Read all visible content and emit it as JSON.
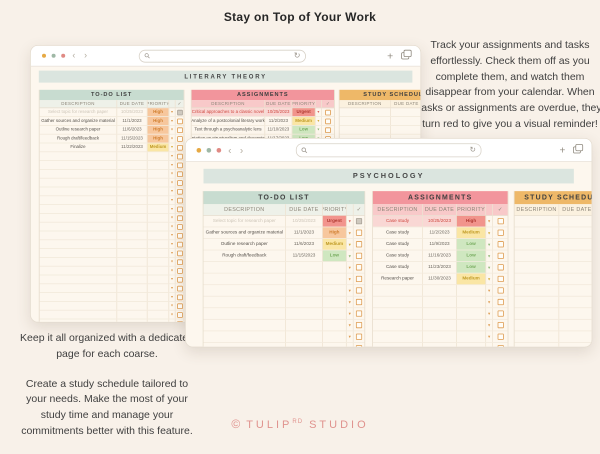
{
  "page": {
    "heading": "Stay on Top of Your Work",
    "right_note": "Track your assignments and tasks effortlessly. Check them off as you complete them, and watch them disappear from your calendar. When tasks or assignments are overdue, they turn red to give you a visual reminder!",
    "left_note_1": "Keep it all organized with a dedicated page for each coarse.",
    "left_note_2": "Create a study schedule tailored to your needs. Make the most of your study time and manage your commitments better with this feature.",
    "footer": {
      "copyright": "©",
      "brand": "TULIP",
      "sup": "RD",
      "suffix": "STUDIO"
    }
  },
  "colors": {
    "background": "#f8f1e9",
    "window_body": "#fdf7ee",
    "banner": "#dbe5df",
    "todo_header": "#c8dcd0",
    "assignments_header": "#f2959c",
    "study_header": "#eeb868",
    "priority_urgent": "#f2948d",
    "priority_high": "#f7c79d",
    "priority_medium": "#fae6a5",
    "priority_low": "#cfe7c0",
    "overdue_row": "#f9d7d4",
    "overdue_text": "#cf4840",
    "checkbox_accent": "#dd9a4e",
    "footer_text": "#e0938e",
    "traffic_lights": [
      "#e6a944",
      "#9fb8a6",
      "#e08a84"
    ]
  },
  "icons": {
    "search": "magnifier",
    "reload": "↻",
    "back": "‹",
    "forward": "›",
    "new_tab": "+",
    "tab_overview": "stacked-squares",
    "dropdown": "▾",
    "check_column": "✓"
  },
  "windows": {
    "back": {
      "page_title": "LITERARY THEORY",
      "search_value": "",
      "tables": {
        "todo": {
          "title": "TO-DO LIST",
          "columns": [
            "DESCRIPTION",
            "DUE DATE",
            "PRIORITY",
            "✓"
          ],
          "rows": [
            {
              "description": "Select topic for research paper",
              "due_date": "10/25/2023",
              "priority": "High",
              "level": "high",
              "state": "done"
            },
            {
              "description": "Gather sources and organize material",
              "due_date": "11/1/2023",
              "priority": "High",
              "level": "high",
              "state": "normal"
            },
            {
              "description": "Outline research paper",
              "due_date": "11/6/2023",
              "priority": "High",
              "level": "high",
              "state": "normal"
            },
            {
              "description": "Rough draft/feedback",
              "due_date": "11/15/2023",
              "priority": "High",
              "level": "high",
              "state": "normal"
            },
            {
              "description": "Finalize",
              "due_date": "11/22/2023",
              "priority": "Medium",
              "level": "medium",
              "state": "normal"
            }
          ],
          "empty_rows": 21
        },
        "assignments": {
          "title": "ASSIGNMENTS",
          "columns": [
            "DESCRIPTION",
            "DUE DATE",
            "PRIORITY",
            "✓"
          ],
          "rows": [
            {
              "description": "Critical approaches to a classic novel",
              "due_date": "10/25/2023",
              "priority": "Urgent",
              "level": "urgent",
              "state": "overdue"
            },
            {
              "description": "Analyze of a postcolonial literary work",
              "due_date": "11/2/2023",
              "priority": "Medium",
              "level": "medium",
              "state": "normal"
            },
            {
              "description": "Text through a psychoanalytic lens",
              "due_date": "11/10/2023",
              "priority": "Low",
              "level": "low",
              "state": "normal"
            },
            {
              "description": "Presentation on structuralism and deconstruction",
              "due_date": "11/17/2023",
              "priority": "Low",
              "level": "low",
              "state": "normal"
            }
          ],
          "empty_rows": 8
        },
        "study": {
          "title": "STUDY SCHEDULE",
          "columns": [
            "DESCRIPTION",
            "DUE DATE",
            "PRIORITY"
          ],
          "rows": [],
          "empty_rows": 8
        }
      }
    },
    "front": {
      "page_title": "PSYCHOLOGY",
      "search_value": "",
      "tables": {
        "todo": {
          "title": "TO-DO LIST",
          "columns": [
            "DESCRIPTION",
            "DUE DATE",
            "PRIORITY",
            "✓"
          ],
          "rows": [
            {
              "description": "Select topic for research paper",
              "due_date": "10/25/2023",
              "priority": "Urgent",
              "level": "urgent",
              "state": "done"
            },
            {
              "description": "Gather sources and organize material",
              "due_date": "11/1/2023",
              "priority": "High",
              "level": "high",
              "state": "normal"
            },
            {
              "description": "Outline research paper",
              "due_date": "11/6/2023",
              "priority": "Medium",
              "level": "medium",
              "state": "normal"
            },
            {
              "description": "Rough draft/feedback",
              "due_date": "11/15/2023",
              "priority": "Low",
              "level": "low",
              "state": "normal"
            }
          ],
          "empty_rows": 9
        },
        "assignments": {
          "title": "ASSIGNMENTS",
          "columns": [
            "DESCRIPTION",
            "DUE DATE",
            "PRIORITY",
            "✓"
          ],
          "rows": [
            {
              "description": "Case study",
              "due_date": "10/25/2023",
              "priority": "High",
              "level": "high",
              "state": "overdue"
            },
            {
              "description": "Case study",
              "due_date": "11/2/2023",
              "priority": "Medium",
              "level": "medium",
              "state": "normal"
            },
            {
              "description": "Case study",
              "due_date": "11/9/2023",
              "priority": "Low",
              "level": "low",
              "state": "normal"
            },
            {
              "description": "Case study",
              "due_date": "11/16/2023",
              "priority": "Low",
              "level": "low",
              "state": "normal"
            },
            {
              "description": "Case study",
              "due_date": "11/23/2023",
              "priority": "Low",
              "level": "low",
              "state": "normal"
            },
            {
              "description": "Research paper",
              "due_date": "11/30/2023",
              "priority": "Medium",
              "level": "medium",
              "state": "normal"
            }
          ],
          "empty_rows": 7
        },
        "study": {
          "title": "STUDY SCHEDULE",
          "columns": [
            "DESCRIPTION",
            "DUE DATE"
          ],
          "rows": [],
          "empty_rows": 13
        }
      }
    }
  }
}
